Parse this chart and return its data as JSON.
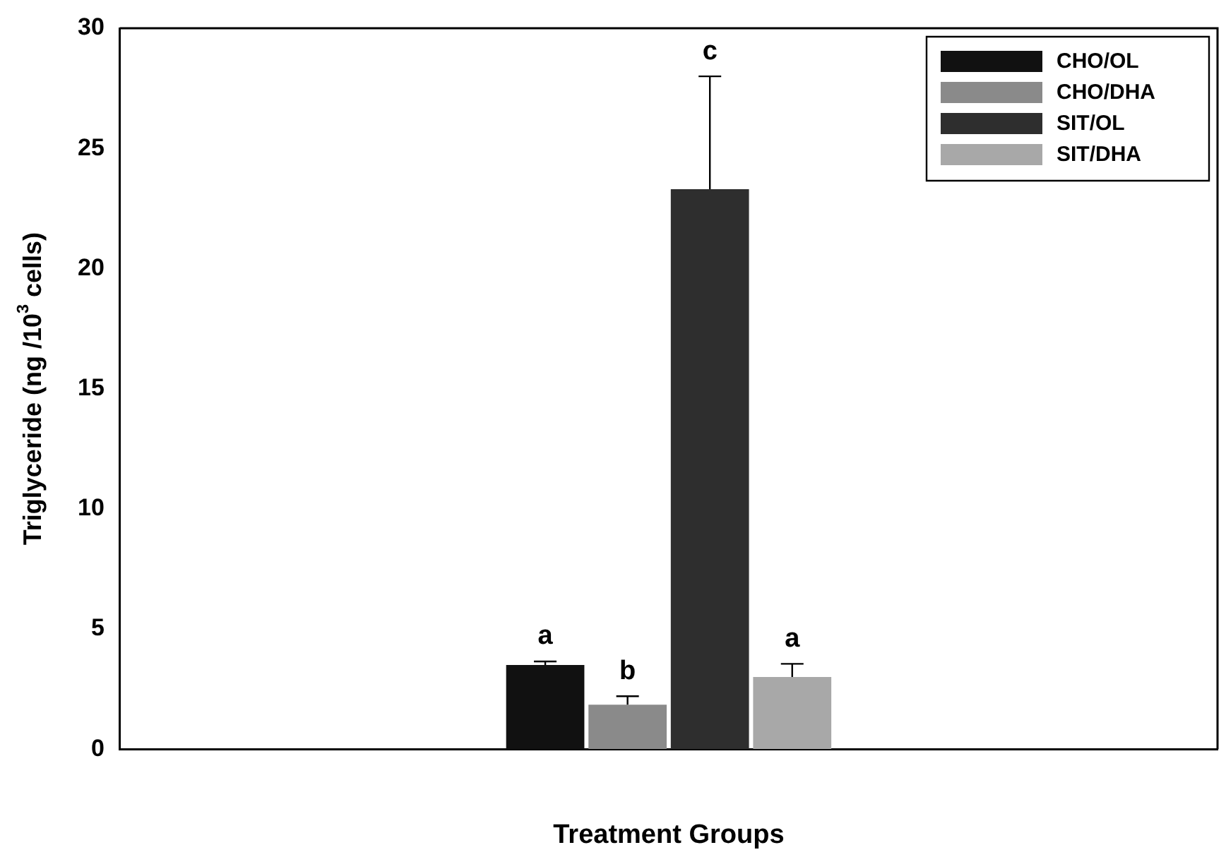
{
  "chart_data": {
    "type": "bar",
    "xlabel": "Treatment Groups",
    "ylabel": "Triglyceride (ng /10$^{3}$ cells)",
    "categories": [
      null
    ],
    "series": [
      {
        "name": "CHO/OL",
        "color": "#111111",
        "values": [
          3.5
        ],
        "errors": [
          0.15
        ]
      },
      {
        "name": "CHO/DHA",
        "color": "#8a8a8a",
        "values": [
          1.85
        ],
        "errors": [
          0.35
        ]
      },
      {
        "name": "SIT/OL",
        "color": "#2e2e2e",
        "values": [
          23.3
        ],
        "errors": [
          4.7
        ]
      },
      {
        "name": "SIT/DHA",
        "color": "#a8a8a8",
        "values": [
          3.0
        ],
        "errors": [
          0.55
        ]
      }
    ],
    "annotations": [
      "a",
      "b",
      "c",
      "a"
    ],
    "ylim": [
      0,
      30
    ],
    "yticks": [
      0,
      5,
      10,
      15,
      20,
      25,
      30
    ],
    "grid": false,
    "legend": "top right"
  }
}
